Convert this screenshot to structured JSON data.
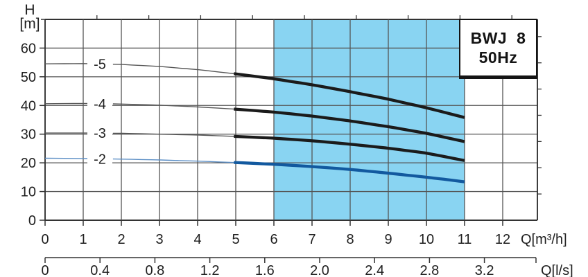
{
  "model_box": {
    "line1": "BWJ 8",
    "line2": "50Hz"
  },
  "y_axis": {
    "title_symbol": "H",
    "title_unit": "[m]",
    "tick_labels": [
      "0",
      "10",
      "20",
      "30",
      "40",
      "50",
      "60"
    ],
    "max": 70
  },
  "x_axis": {
    "unit_label": "Q[m³/h]",
    "tick_labels": [
      "0",
      "1",
      "2",
      "3",
      "4",
      "5",
      "6",
      "7",
      "8",
      "9",
      "10",
      "11",
      "12"
    ]
  },
  "secondary_x_axis": {
    "unit_label": "Q[l/s]",
    "tick_labels": [
      "0",
      "0.4",
      "0.8",
      "1.2",
      "1.6",
      "2.0",
      "2.4",
      "2.8",
      "3.2"
    ]
  },
  "duty_zone": {
    "q_from": 6,
    "q_to": 11
  },
  "chart_data": {
    "type": "line",
    "title": "BWJ 8 50Hz pump performance curves",
    "xlabel": "Q[m³/h]",
    "ylabel": "H [m]",
    "xlim": [
      0,
      12.9
    ],
    "ylim": [
      0,
      70
    ],
    "grid": true,
    "bold_from_q": 5,
    "x": [
      0,
      1,
      2,
      3,
      4,
      5,
      6,
      7,
      8,
      9,
      10,
      11
    ],
    "series": [
      {
        "name": "-5",
        "color": "#1b1b1b",
        "thin_color": "#555555",
        "values": [
          54.5,
          54.6,
          54.3,
          53.6,
          52.5,
          51.0,
          49.3,
          47.2,
          44.8,
          42.2,
          39.2,
          35.8
        ]
      },
      {
        "name": "-4",
        "color": "#1b1b1b",
        "thin_color": "#555555",
        "values": [
          40.6,
          40.7,
          40.5,
          40.1,
          39.5,
          38.7,
          37.7,
          36.3,
          34.6,
          32.6,
          30.3,
          27.4
        ]
      },
      {
        "name": "-3",
        "color": "#1b1b1b",
        "thin_color": "#555555",
        "values": [
          30.4,
          30.4,
          30.3,
          30.0,
          29.7,
          29.2,
          28.6,
          27.7,
          26.5,
          25.1,
          23.4,
          20.8
        ]
      },
      {
        "name": "-2",
        "color": "#12599f",
        "thin_color": "#5b8ec5",
        "values": [
          21.6,
          21.5,
          21.3,
          21.0,
          20.6,
          20.1,
          19.5,
          18.7,
          17.7,
          16.4,
          15.0,
          13.4
        ]
      }
    ]
  },
  "decorations": {
    "top_unlabeled_tick_count": 9,
    "right_unlabeled_tick_count": 7
  },
  "colors": {
    "duty_zone": "#89d4f2",
    "grid": "#555555",
    "border": "#333333",
    "text": "#1f1f1f"
  }
}
